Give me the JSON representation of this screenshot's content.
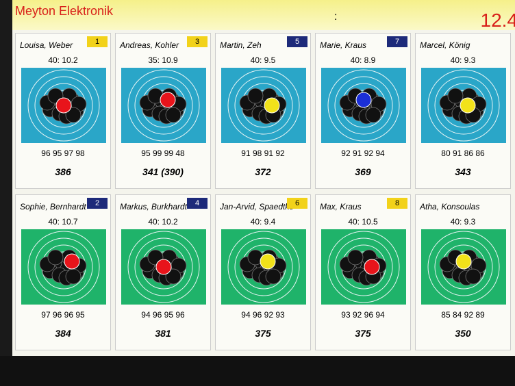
{
  "header": {
    "brand": "Meyton Elektronik",
    "separator": ":",
    "clock": "12.4"
  },
  "cards": [
    {
      "name": "Louisa, Weber",
      "number": "1",
      "badge_color": "#f2d21a",
      "shot": "40:  10.2",
      "series": "96 95 97 98",
      "total": "386",
      "last_shot_color": "#e8141b"
    },
    {
      "name": "Andreas, Kohler",
      "number": "3",
      "badge_color": "#f2d21a",
      "shot": "35:  10.9",
      "series": "95 99 99 48",
      "total": "341 (390)",
      "last_shot_color": "#e8141b"
    },
    {
      "name": "Martin, Zeh",
      "number": "5",
      "badge_color": "#1d2a7a",
      "shot": "40:  9.5",
      "series": "91 98 91 92",
      "total": "372",
      "last_shot_color": "#f2e21a"
    },
    {
      "name": "Marie, Kraus",
      "number": "7",
      "badge_color": "#1d2a7a",
      "shot": "40:  8.9",
      "series": "92 91 92 94",
      "total": "369",
      "last_shot_color": "#1b2fd8"
    },
    {
      "name": "Marcel, König",
      "shot": "40:  9.3",
      "series": "80 91 86 86",
      "total": "343",
      "last_shot_color": "#f2e21a"
    },
    {
      "name": "Sophie, Bernhardt",
      "number": "2",
      "badge_color": "#1d2a7a",
      "shot": "40:  10.7",
      "series": "97 96 96 95",
      "total": "384",
      "last_shot_color": "#e8141b"
    },
    {
      "name": "Markus, Burkhardt",
      "number": "4",
      "badge_color": "#1d2a7a",
      "shot": "40:  10.2",
      "series": "94 96 95 96",
      "total": "381",
      "last_shot_color": "#e8141b"
    },
    {
      "name": "Jan-Arvid, Spaedtke",
      "number": "6",
      "badge_color": "#f2d21a",
      "shot": "40:  9.4",
      "series": "94 96 92 93",
      "total": "375",
      "last_shot_color": "#f2e21a"
    },
    {
      "name": "Max, Kraus",
      "number": "8",
      "badge_color": "#f2d21a",
      "shot": "40:  10.5",
      "series": "93 92 96 94",
      "total": "375",
      "last_shot_color": "#e8141b"
    },
    {
      "name": "Atha, Konsoulas",
      "shot": "40:  9.3",
      "series": "85 84 92 89",
      "total": "350",
      "last_shot_color": "#f2e21a"
    }
  ]
}
